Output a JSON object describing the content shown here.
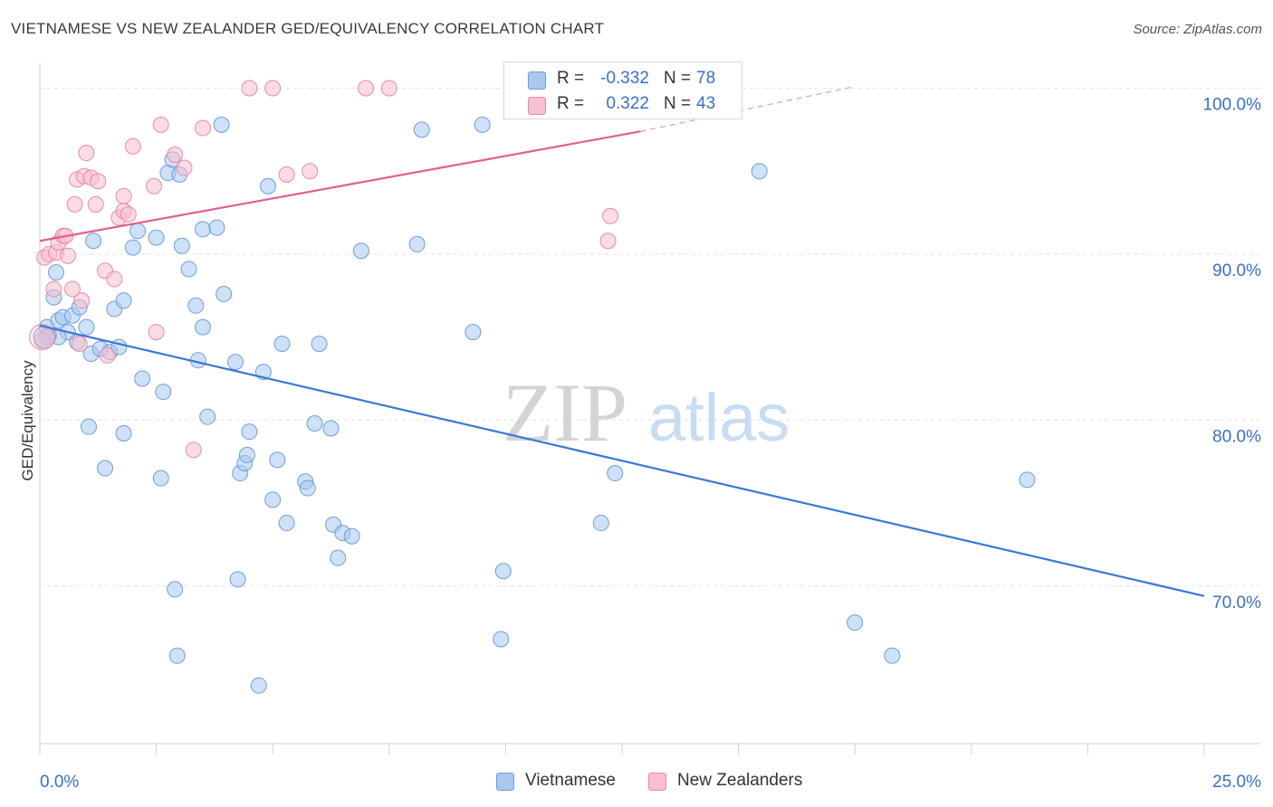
{
  "title": "VIETNAMESE VS NEW ZEALANDER GED/EQUIVALENCY CORRELATION CHART",
  "source": "Source: ZipAtlas.com",
  "watermark": {
    "zip": "ZIP",
    "atlas": "atlas"
  },
  "legend": {
    "r_label": "R =",
    "n_label": "N =",
    "rows": [
      {
        "r": "-0.332",
        "n": "78",
        "color": "#a8c8f0",
        "border": "#6d9fd8"
      },
      {
        "r": "0.322",
        "n": "43",
        "color": "#f8bfd0",
        "border": "#e98aa6"
      }
    ]
  },
  "chart_data": {
    "type": "scatter",
    "xlabel": "",
    "ylabel": "GED/Equivalency",
    "xlim": [
      0,
      25
    ],
    "ylim": [
      60.5,
      101.5
    ],
    "x_tick_labels": [
      {
        "value": 0,
        "label": "0.0%"
      },
      {
        "value": 25,
        "label": "25.0%"
      }
    ],
    "y_tick_labels": [
      {
        "value": 100,
        "label": "100.0%"
      },
      {
        "value": 90,
        "label": "90.0%"
      },
      {
        "value": 80,
        "label": "80.0%"
      },
      {
        "value": 70,
        "label": "70.0%"
      }
    ],
    "grid": true,
    "series": [
      {
        "name": "Vietnamese",
        "color": "#a8c8f0",
        "stroke": "#6d9fd8",
        "trend": {
          "x0": 0,
          "y0": 85.7,
          "x1": 25,
          "y1": 69.4,
          "color": "#3a78d4"
        },
        "points": [
          [
            0.15,
            85.6
          ],
          [
            0.2,
            85.1
          ],
          [
            0.3,
            87.4
          ],
          [
            0.35,
            88.9
          ],
          [
            0.4,
            86.0
          ],
          [
            0.5,
            86.2
          ],
          [
            0.6,
            85.3
          ],
          [
            0.7,
            86.3
          ],
          [
            0.8,
            84.7
          ],
          [
            0.85,
            86.8
          ],
          [
            1.0,
            85.6
          ],
          [
            1.1,
            84.0
          ],
          [
            1.3,
            84.3
          ],
          [
            1.5,
            84.1
          ],
          [
            1.6,
            86.7
          ],
          [
            1.8,
            87.2
          ],
          [
            1.05,
            79.6
          ],
          [
            1.15,
            90.8
          ],
          [
            1.7,
            84.4
          ],
          [
            2.1,
            91.4
          ],
          [
            2.2,
            82.5
          ],
          [
            2.5,
            91.0
          ],
          [
            2.0,
            90.4
          ],
          [
            2.6,
            76.5
          ],
          [
            2.75,
            94.9
          ],
          [
            2.85,
            95.7
          ],
          [
            3.0,
            94.8
          ],
          [
            2.65,
            81.7
          ],
          [
            3.05,
            90.5
          ],
          [
            3.2,
            89.1
          ],
          [
            3.35,
            86.9
          ],
          [
            3.4,
            83.6
          ],
          [
            3.5,
            85.6
          ],
          [
            3.6,
            80.2
          ],
          [
            3.5,
            91.5
          ],
          [
            3.8,
            91.6
          ],
          [
            3.9,
            97.8
          ],
          [
            3.95,
            87.6
          ],
          [
            4.2,
            83.5
          ],
          [
            4.25,
            70.4
          ],
          [
            4.3,
            76.8
          ],
          [
            4.4,
            77.4
          ],
          [
            4.45,
            77.9
          ],
          [
            4.5,
            79.3
          ],
          [
            4.7,
            64.0
          ],
          [
            4.8,
            82.9
          ],
          [
            4.9,
            94.1
          ],
          [
            5.0,
            75.2
          ],
          [
            5.1,
            77.6
          ],
          [
            5.2,
            84.6
          ],
          [
            5.3,
            73.8
          ],
          [
            5.7,
            76.3
          ],
          [
            5.75,
            75.9
          ],
          [
            5.9,
            79.8
          ],
          [
            6.0,
            84.6
          ],
          [
            6.25,
            79.5
          ],
          [
            6.3,
            73.7
          ],
          [
            6.4,
            71.7
          ],
          [
            6.5,
            73.2
          ],
          [
            6.7,
            73.0
          ],
          [
            6.9,
            90.2
          ],
          [
            8.1,
            90.6
          ],
          [
            8.2,
            97.5
          ],
          [
            9.3,
            85.3
          ],
          [
            9.5,
            97.8
          ],
          [
            9.9,
            66.8
          ],
          [
            9.95,
            70.9
          ],
          [
            12.05,
            73.8
          ],
          [
            12.35,
            76.8
          ],
          [
            15.45,
            95.0
          ],
          [
            17.5,
            67.8
          ],
          [
            18.3,
            65.8
          ],
          [
            21.2,
            76.4
          ],
          [
            2.9,
            69.8
          ],
          [
            2.95,
            65.8
          ],
          [
            1.8,
            79.2
          ],
          [
            1.4,
            77.1
          ],
          [
            0.4,
            85.0
          ]
        ]
      },
      {
        "name": "New Zealanders",
        "color": "#f8bfd0",
        "stroke": "#e98aa6",
        "trend": {
          "x0": 0,
          "y0": 90.8,
          "x1": 12.9,
          "y1": 97.4,
          "color": "#e0608a"
        },
        "trend_dashed": {
          "x0": 12.9,
          "y0": 97.4,
          "x1": 17.5,
          "y1": 100.1,
          "color": "#e8a0b8"
        },
        "points": [
          [
            0.1,
            89.8
          ],
          [
            0.2,
            90.0
          ],
          [
            0.3,
            87.9
          ],
          [
            0.35,
            90.1
          ],
          [
            0.4,
            90.7
          ],
          [
            0.5,
            91.1
          ],
          [
            0.55,
            91.1
          ],
          [
            0.6,
            89.9
          ],
          [
            0.7,
            87.9
          ],
          [
            0.75,
            93.0
          ],
          [
            0.8,
            94.5
          ],
          [
            0.9,
            87.2
          ],
          [
            0.95,
            94.7
          ],
          [
            1.0,
            96.1
          ],
          [
            1.1,
            94.6
          ],
          [
            1.2,
            93.0
          ],
          [
            1.25,
            94.4
          ],
          [
            1.4,
            89.0
          ],
          [
            1.45,
            83.9
          ],
          [
            1.6,
            88.5
          ],
          [
            1.7,
            92.2
          ],
          [
            1.8,
            92.6
          ],
          [
            1.8,
            93.5
          ],
          [
            1.9,
            92.4
          ],
          [
            2.0,
            96.5
          ],
          [
            2.45,
            94.1
          ],
          [
            2.5,
            85.3
          ],
          [
            2.6,
            97.8
          ],
          [
            2.9,
            96.0
          ],
          [
            3.1,
            95.2
          ],
          [
            3.3,
            78.2
          ],
          [
            3.5,
            97.6
          ],
          [
            4.5,
            100.0
          ],
          [
            5.0,
            100.0
          ],
          [
            5.3,
            94.8
          ],
          [
            5.8,
            95.0
          ],
          [
            7.0,
            100.0
          ],
          [
            7.5,
            100.0
          ],
          [
            12.25,
            92.3
          ],
          [
            12.2,
            90.8
          ],
          [
            0.15,
            85.0
          ],
          [
            0.05,
            84.8
          ],
          [
            0.85,
            84.6
          ]
        ]
      }
    ]
  }
}
